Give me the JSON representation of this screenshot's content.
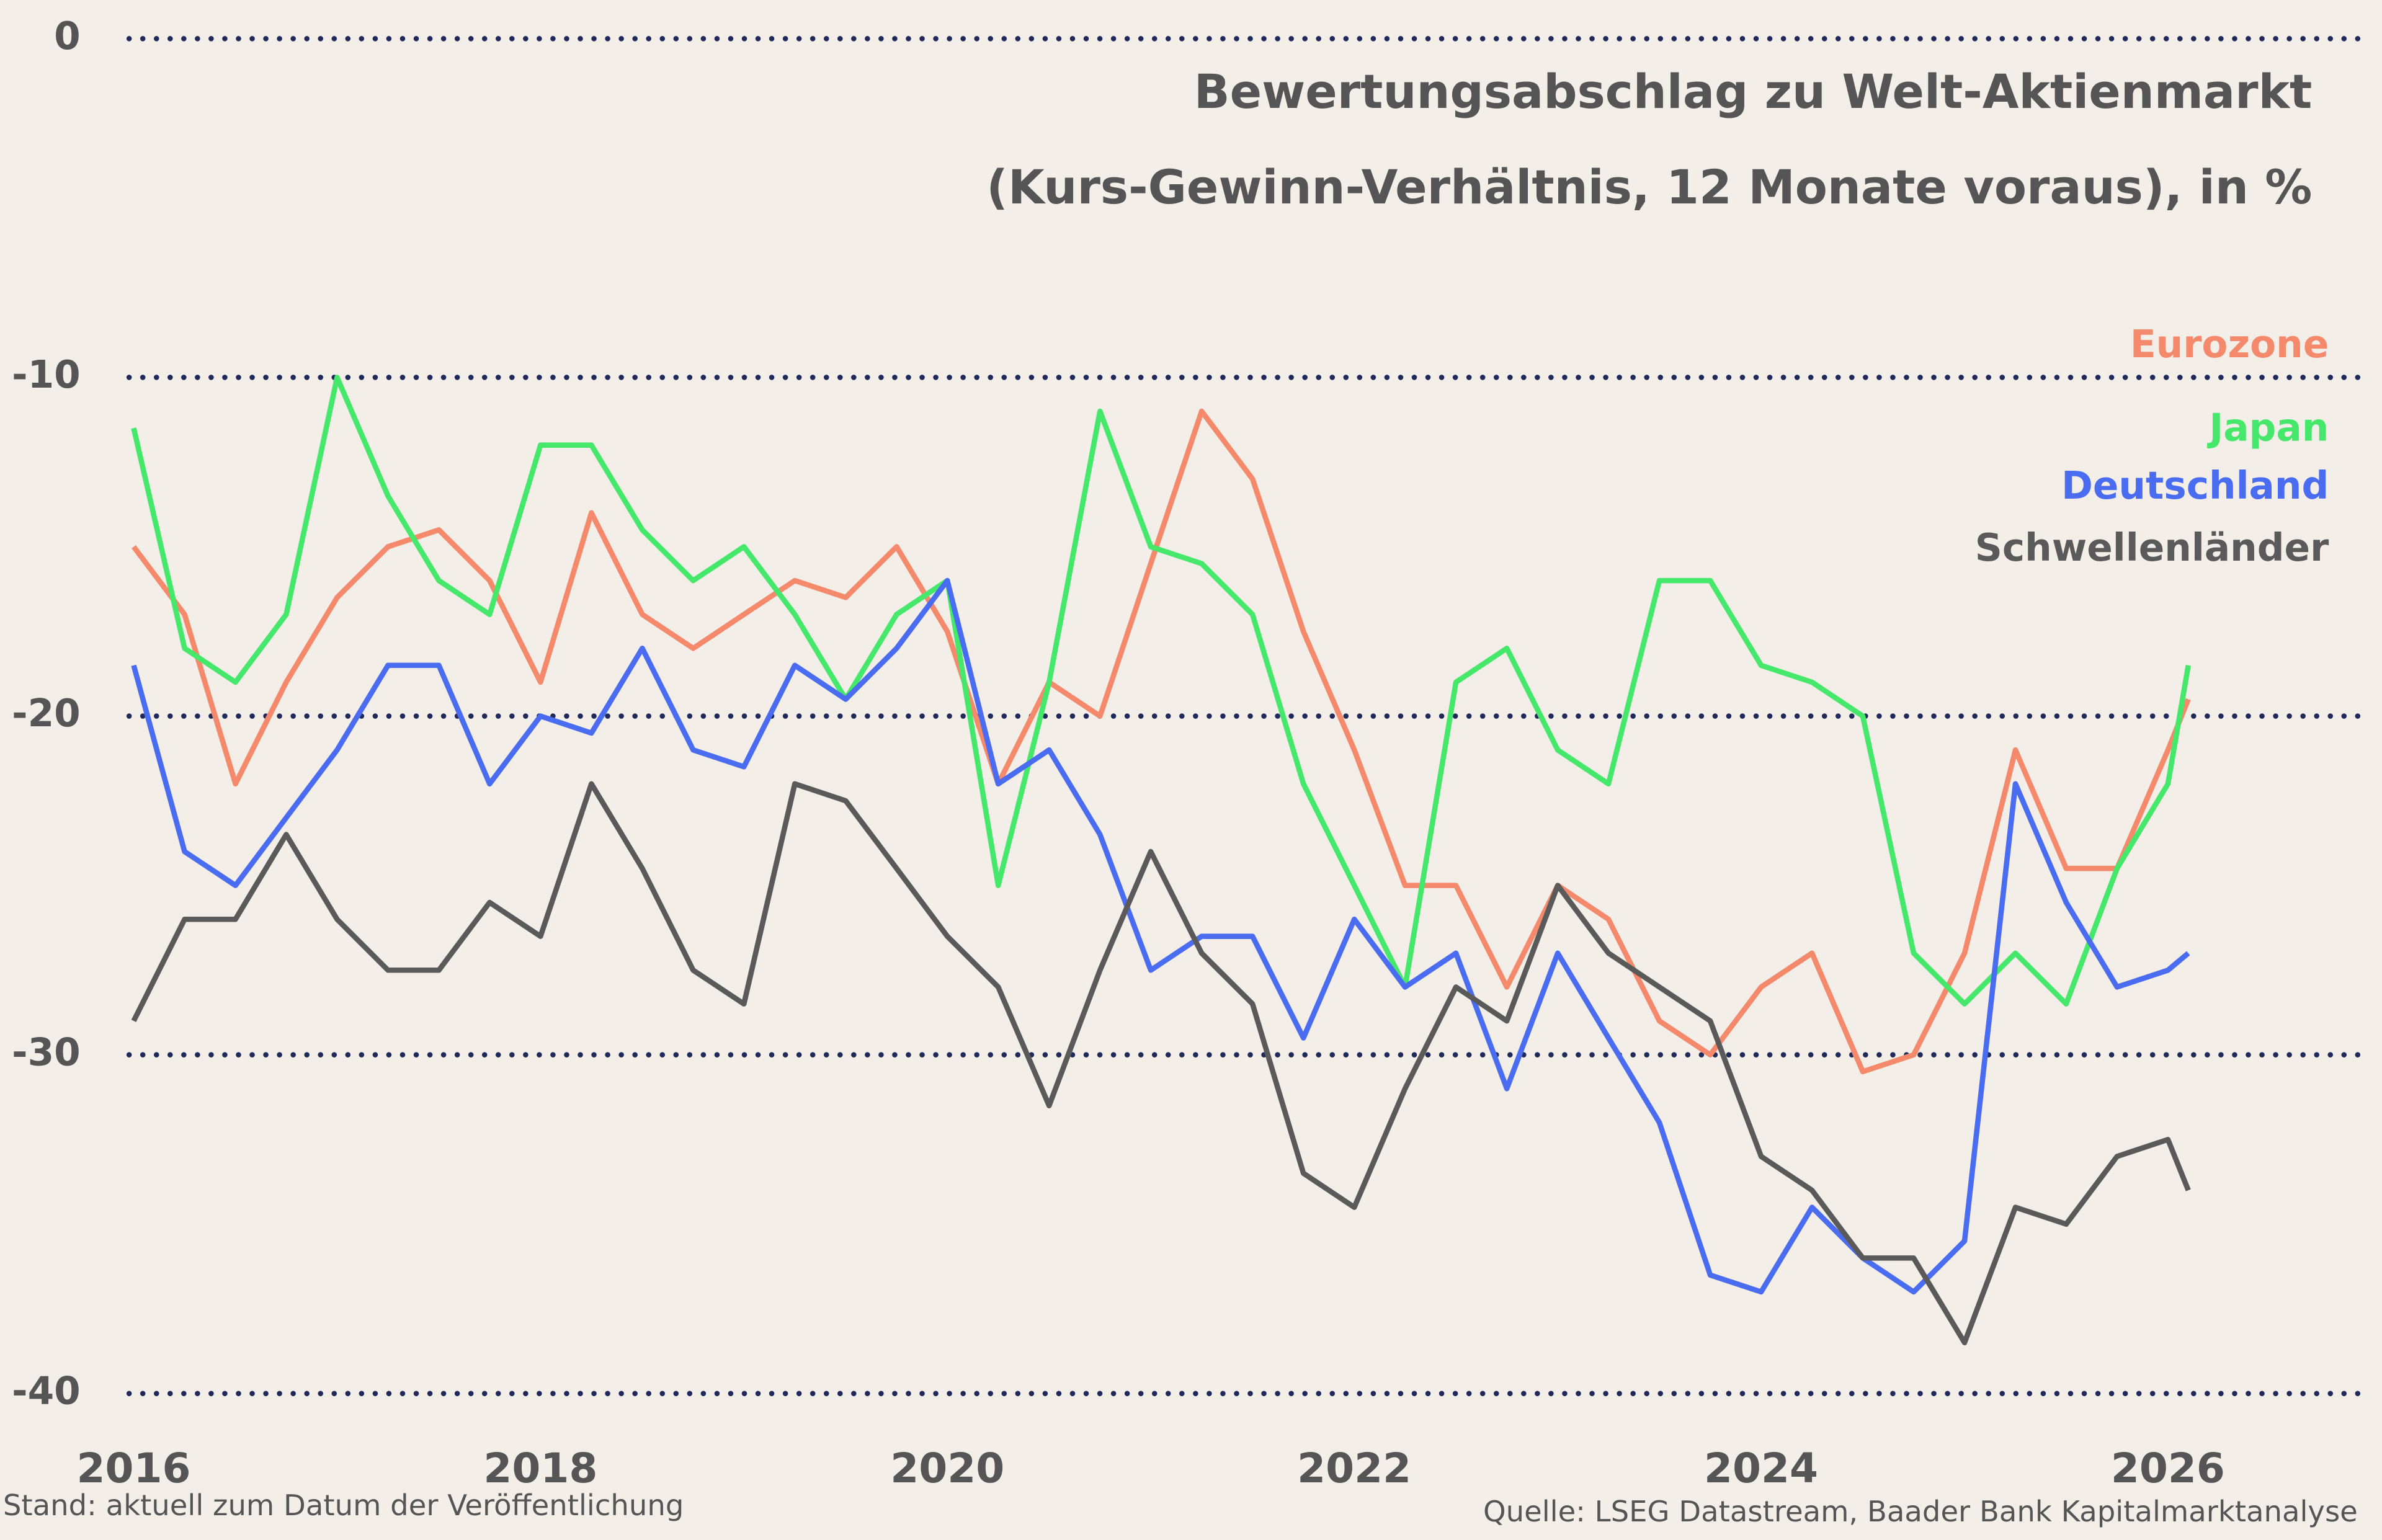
{
  "chart_data": {
    "type": "line",
    "title": "Bewertungsabschlag zu Welt-Aktienmarkt",
    "subtitle": "(Kurs-Gewinn-Verhältnis, 12 Monate voraus), in %",
    "note": "Stand: aktuell zum Datum der Veröffentlichung",
    "source": "Quelle: LSEG Datastream, Baader Bank Kapitalmarktanalyse",
    "x": [
      2016,
      2016.25,
      2016.5,
      2016.75,
      2017,
      2017.25,
      2017.5,
      2017.75,
      2018,
      2018.25,
      2018.5,
      2018.75,
      2019,
      2019.25,
      2019.5,
      2019.75,
      2020,
      2020.25,
      2020.5,
      2020.75,
      2021,
      2021.25,
      2021.5,
      2021.75,
      2022,
      2022.25,
      2022.5,
      2022.75,
      2023,
      2023.25,
      2023.5,
      2023.75,
      2024,
      2024.25,
      2024.5,
      2024.75,
      2025,
      2025.25,
      2025.5,
      2025.75,
      2026,
      2026.1
    ],
    "series": [
      {
        "name": "Eurozone",
        "color": "#f4896b",
        "values": [
          -15,
          -17,
          -22,
          -19,
          -16.5,
          -15,
          -14.5,
          -16,
          -19,
          -14,
          -17,
          -18,
          -17,
          -16,
          -16.5,
          -15,
          -17.5,
          -22,
          -19,
          -20,
          -15.5,
          -11,
          -13,
          -17.5,
          -21,
          -25,
          -25,
          -28,
          -25,
          -26,
          -29,
          -30,
          -28,
          -27,
          -30.5,
          -30,
          -27,
          -21,
          -24.5,
          -24.5,
          -21,
          -19.5
        ]
      },
      {
        "name": "Japan",
        "color": "#45e86a",
        "values": [
          -11.5,
          -18,
          -19,
          -17,
          -10,
          -13.5,
          -16,
          -17,
          -12,
          -12,
          -14.5,
          -16,
          -15,
          -17,
          -19.5,
          -17,
          -16,
          -25,
          -19,
          -11,
          -15,
          -15.5,
          -17,
          -22,
          -25,
          -28,
          -19,
          -18,
          -21,
          -22,
          -16,
          -16,
          -18.5,
          -19,
          -20,
          -27,
          -28.5,
          -27,
          -28.5,
          -24.5,
          -22,
          -18.5
        ]
      },
      {
        "name": "Deutschland",
        "color": "#4a6cf0",
        "values": [
          -18.5,
          -24,
          -25,
          -23,
          -21,
          -18.5,
          -18.5,
          -22,
          -20,
          -20.5,
          -18,
          -21,
          -21.5,
          -18.5,
          -19.5,
          -18,
          -16,
          -22,
          -21,
          -23.5,
          -27.5,
          -26.5,
          -26.5,
          -29.5,
          -26,
          -28,
          -27,
          -31,
          -27,
          -29.5,
          -32,
          -36.5,
          -37,
          -34.5,
          -36,
          -37,
          -35.5,
          -22,
          -25.5,
          -28,
          -27.5,
          -27
        ]
      },
      {
        "name": "Schwellenländer",
        "color": "#5a5a5a",
        "values": [
          -29,
          -26,
          -26,
          -23.5,
          -26,
          -27.5,
          -27.5,
          -25.5,
          -26.5,
          -22,
          -24.5,
          -27.5,
          -28.5,
          -22,
          -22.5,
          -24.5,
          -26.5,
          -28,
          -31.5,
          -27.5,
          -24,
          -27,
          -28.5,
          -33.5,
          -34.5,
          -31,
          -28,
          -29,
          -25,
          -27,
          -28,
          -29,
          -33,
          -34,
          -36,
          -36,
          -38.5,
          -34.5,
          -35,
          -33,
          -32.5,
          -34
        ]
      }
    ],
    "xlim": [
      2016,
      2027
    ],
    "xticks": [
      2016,
      2018,
      2020,
      2022,
      2024,
      2026
    ],
    "ylim": [
      -40,
      0
    ],
    "yticks": [
      0,
      -10,
      -20,
      -30,
      -40
    ],
    "grid": true,
    "legend": "top-right"
  }
}
